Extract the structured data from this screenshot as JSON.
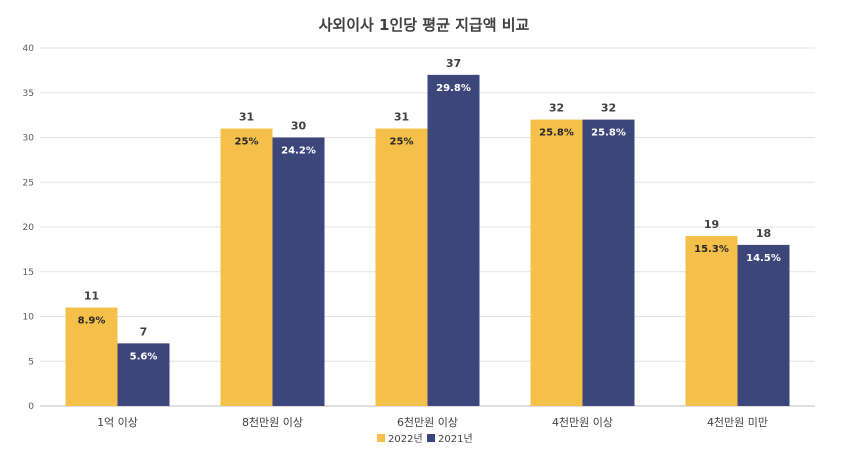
{
  "chart_data": {
    "type": "bar",
    "title": "사외이사 1인당 평균 지급액 비교",
    "categories": [
      "1억 이상",
      "8천만원 이상",
      "6천만원 이상",
      "4천만원 이상",
      "4천만원 미만"
    ],
    "series": [
      {
        "name": "2022년",
        "color": "#F5C04A",
        "values": [
          11,
          31,
          31,
          32,
          19
        ],
        "percent_labels": [
          "8.9%",
          "25%",
          "25%",
          "25.8%",
          "15.3%"
        ]
      },
      {
        "name": "2021년",
        "color": "#3C467A",
        "values": [
          7,
          30,
          37,
          32,
          18
        ],
        "percent_labels": [
          "5.6%",
          "24.2%",
          "29.8%",
          "25.8%",
          "14.5%"
        ]
      }
    ],
    "yticks": [
      0,
      5,
      10,
      15,
      20,
      25,
      30,
      35,
      40
    ],
    "ylim": [
      0,
      40
    ],
    "grid": true,
    "legend": "bottom-center"
  }
}
